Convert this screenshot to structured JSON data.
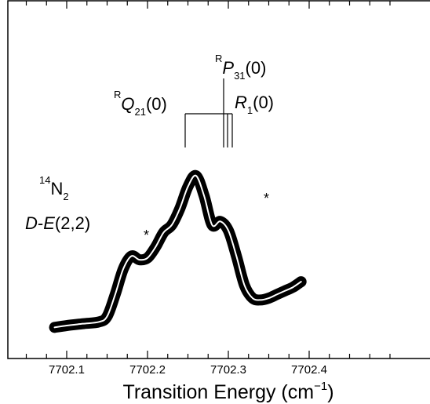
{
  "chart_data": {
    "type": "line",
    "title": "",
    "xlabel": "Transition Energy (cm",
    "xlabel_superscript": "−1",
    "xlabel_close": ")",
    "ylabel": "",
    "xlim": [
      7702.05,
      7702.45
    ],
    "ylim": [
      0,
      1
    ],
    "grid": false,
    "x_ticks": [
      7702.1,
      7702.2,
      7702.3,
      7702.4
    ],
    "x_tick_labels": [
      "7702.1",
      "7702.2",
      "7702.3",
      "7702.4"
    ],
    "series": [
      {
        "style": "thick black trace with white center line",
        "x": [
          7702.085,
          7702.1,
          7702.12,
          7702.14,
          7702.15,
          7702.16,
          7702.17,
          7702.18,
          7702.19,
          7702.2,
          7702.21,
          7702.22,
          7702.23,
          7702.24,
          7702.25,
          7702.26,
          7702.27,
          7702.28,
          7702.29,
          7702.3,
          7702.31,
          7702.32,
          7702.33,
          7702.34,
          7702.35,
          7702.36,
          7702.37,
          7702.38,
          7702.39
        ],
        "y": [
          0.02,
          0.03,
          0.04,
          0.05,
          0.08,
          0.2,
          0.34,
          0.41,
          0.39,
          0.4,
          0.46,
          0.54,
          0.58,
          0.67,
          0.79,
          0.85,
          0.74,
          0.58,
          0.6,
          0.55,
          0.41,
          0.25,
          0.18,
          0.17,
          0.18,
          0.2,
          0.22,
          0.24,
          0.27
        ]
      }
    ],
    "assignment_labels": [
      {
        "sup": "R",
        "main": "Q",
        "sub": "21",
        "tail": "(0)",
        "x": 7702.218
      },
      {
        "sup": "R",
        "main": "P",
        "sub": "31",
        "tail": "(0)",
        "x": 7702.254
      },
      {
        "sup": "",
        "main": "R",
        "sub": "1",
        "tail": "(0)",
        "x": 7702.262
      }
    ],
    "annotations": [
      {
        "text": "*",
        "x": 7702.18
      },
      {
        "text": "*",
        "x": 7702.297
      }
    ],
    "molecule": {
      "isotope": "14",
      "element": "N",
      "subscript": "2"
    },
    "band": {
      "lower": "D",
      "dash": "-",
      "upper": "E",
      "tail": "(2,2)"
    }
  }
}
